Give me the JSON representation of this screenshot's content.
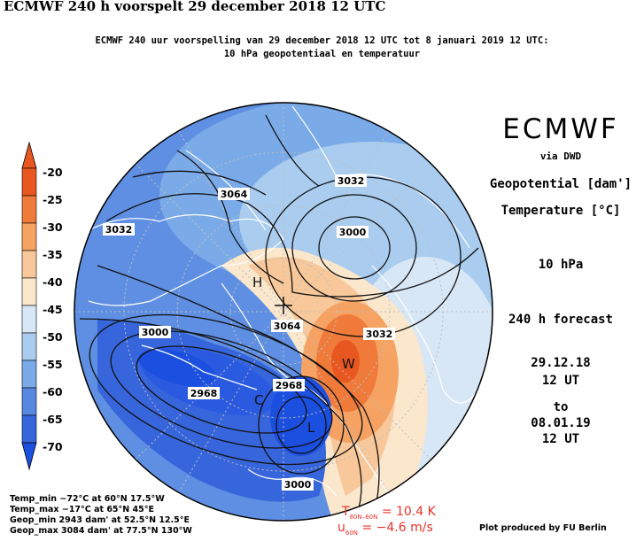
{
  "header": {
    "title": "ECMWF 240 h voorspelt 29 december 2018 12 UTC",
    "subtitle_line1": "ECMWF 240 uur voorspelling van 29 december 2018 12 UTC tot 8 januari 2019 12 UTC:",
    "subtitle_line2": "10 hPa geopotentiaal en temperatuur"
  },
  "sidebar": {
    "brand": "ECMWF",
    "via": "via DWD",
    "geopotential": "Geopotential [dam']",
    "temperature": "Temperature [°C]",
    "level": "10 hPa",
    "forecast": "240 h forecast",
    "valid_from_date": "29.12.18",
    "valid_from_time": "12 UT",
    "to": "to",
    "valid_to_date": "08.01.19",
    "valid_to_time": "12 UT"
  },
  "colorbar": {
    "labels": [
      "-20",
      "-25",
      "-30",
      "-35",
      "-40",
      "-45",
      "-50",
      "-55",
      "-60",
      "-65",
      "-70"
    ],
    "colors": [
      "#e8571f",
      "#f07a3a",
      "#f5a263",
      "#f8c89a",
      "#fbe7cc",
      "#d8e7f6",
      "#a9ccef",
      "#7aaae8",
      "#5788e0",
      "#3766dc",
      "#1b4fe0"
    ]
  },
  "stats": {
    "temp_min": "Temp_min −72°C at 60°N 17.5°W",
    "temp_max": "Temp_max −17°C at 65°N 45°E",
    "geop_min": "Geop_min 2943 dam' at 52.5°N 12.5°E",
    "geop_max": "Geop_max 3084 dam' at 77.5°N 130°W"
  },
  "indices": {
    "t_label": "T",
    "t_sub": "80N–60N",
    "t_value": "= 10.4 K",
    "u_label": "u",
    "u_sub": "60N",
    "u_value": "= −4.6 m/s"
  },
  "credit": "Plot produced by FU Berlin",
  "map": {
    "contour_labels": [
      "3064",
      "3032",
      "3032",
      "3000",
      "3064",
      "3000",
      "3032",
      "2968",
      "2968",
      "3000"
    ],
    "pressure_centers": [
      "H",
      "W",
      "C",
      "L"
    ]
  }
}
